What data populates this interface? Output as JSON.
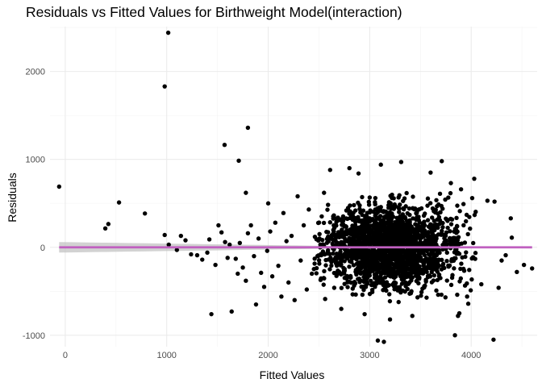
{
  "chart_data": {
    "type": "scatter",
    "title": "Residuals vs Fitted Values for Birthweight Model(interaction)",
    "xlabel": "Fitted Values",
    "ylabel": "Residuals",
    "xlim": [
      -150,
      4650
    ],
    "ylim": [
      -1130,
      2510
    ],
    "x_ticks": [
      0,
      1000,
      2000,
      3000,
      4000
    ],
    "y_ticks": [
      -1000,
      0,
      1000,
      2000
    ],
    "x_tick_labels": [
      "0",
      "1000",
      "2000",
      "3000",
      "4000"
    ],
    "y_tick_labels": [
      "-1000",
      "0",
      "1000",
      "2000"
    ],
    "grid": true,
    "point_color": "#000000",
    "smooth": {
      "method": "linear fit",
      "color": "#c060c0",
      "band_color": "#bfbfbf",
      "x_range": [
        -60,
        4600
      ],
      "y_start": 0,
      "y_end": 0,
      "se_start": 60,
      "se_mid": 6,
      "se_end": 12
    },
    "points": [
      [
        -60,
        690
      ],
      [
        1015,
        2440
      ],
      [
        980,
        1830
      ],
      [
        1800,
        1360
      ],
      [
        1570,
        1165
      ],
      [
        1710,
        985
      ],
      [
        530,
        510
      ],
      [
        785,
        385
      ],
      [
        425,
        265
      ],
      [
        395,
        215
      ],
      [
        1780,
        620
      ],
      [
        980,
        140
      ],
      [
        1020,
        30
      ],
      [
        1100,
        -30
      ],
      [
        1140,
        130
      ],
      [
        1185,
        80
      ],
      [
        1240,
        -80
      ],
      [
        1300,
        -90
      ],
      [
        1350,
        -140
      ],
      [
        1400,
        -60
      ],
      [
        1420,
        90
      ],
      [
        1440,
        -760
      ],
      [
        1480,
        -200
      ],
      [
        1510,
        250
      ],
      [
        1540,
        170
      ],
      [
        1575,
        60
      ],
      [
        1600,
        -120
      ],
      [
        1620,
        30
      ],
      [
        1640,
        -730
      ],
      [
        1680,
        -130
      ],
      [
        1700,
        -300
      ],
      [
        1720,
        50
      ],
      [
        1750,
        -230
      ],
      [
        1780,
        -380
      ],
      [
        1800,
        160
      ],
      [
        1830,
        250
      ],
      [
        1860,
        -100
      ],
      [
        1880,
        -650
      ],
      [
        1905,
        100
      ],
      [
        1930,
        -290
      ],
      [
        1960,
        -450
      ],
      [
        1990,
        -40
      ],
      [
        2000,
        500
      ],
      [
        2020,
        180
      ],
      [
        2040,
        -330
      ],
      [
        2070,
        280
      ],
      [
        2100,
        -210
      ],
      [
        2130,
        -560
      ],
      [
        2150,
        390
      ],
      [
        2180,
        70
      ],
      [
        2200,
        -400
      ],
      [
        2230,
        130
      ],
      [
        2260,
        -600
      ],
      [
        2290,
        580
      ],
      [
        2320,
        -150
      ],
      [
        2350,
        250
      ],
      [
        2380,
        -480
      ],
      [
        2400,
        430
      ],
      [
        2430,
        -300
      ],
      [
        2460,
        120
      ],
      [
        3110,
        940
      ],
      [
        3310,
        970
      ],
      [
        3710,
        980
      ],
      [
        3080,
        -1060
      ],
      [
        3140,
        -1075
      ],
      [
        3840,
        -1000
      ],
      [
        4220,
        -1050
      ],
      [
        4600,
        -240
      ],
      [
        4520,
        -200
      ],
      [
        4270,
        -460
      ],
      [
        4390,
        330
      ],
      [
        4230,
        520
      ],
      [
        4160,
        530
      ],
      [
        4010,
        560
      ],
      [
        4030,
        780
      ],
      [
        3900,
        660
      ],
      [
        2610,
        880
      ],
      [
        2890,
        840
      ],
      [
        4450,
        -280
      ],
      [
        4340,
        -90
      ],
      [
        4400,
        110
      ],
      [
        3960,
        -560
      ],
      [
        3870,
        -780
      ],
      [
        3420,
        -780
      ],
      [
        3200,
        -820
      ],
      [
        2950,
        -760
      ],
      [
        2720,
        -700
      ],
      [
        2550,
        620
      ],
      [
        2800,
        900
      ],
      [
        3600,
        850
      ],
      [
        3800,
        730
      ],
      [
        4100,
        -420
      ],
      [
        4300,
        -150
      ]
    ],
    "cloud": {
      "count": 2100,
      "center_x": 3200,
      "sd_x": 330,
      "sd_y": 225,
      "x_min": 2450,
      "x_max": 4050,
      "y_min": -790,
      "y_max": 820,
      "seed": 20231
    }
  }
}
